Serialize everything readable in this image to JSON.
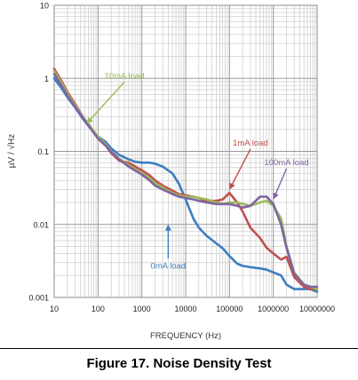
{
  "chart_data": {
    "type": "line",
    "xscale": "log",
    "yscale": "log",
    "xlim": [
      10,
      10000000
    ],
    "ylim": [
      0.001,
      10
    ],
    "grid": true,
    "xlabel": "FREQUENCY (Hz)",
    "ylabel": "µV / √Hz",
    "xticks": [
      {
        "value": 10,
        "label": "10"
      },
      {
        "value": 100,
        "label": "100"
      },
      {
        "value": 1000,
        "label": "1000"
      },
      {
        "value": 10000,
        "label": "10000"
      },
      {
        "value": 100000,
        "label": "100000"
      },
      {
        "value": 1000000,
        "label": "1000000"
      },
      {
        "value": 10000000,
        "label": "10000000"
      }
    ],
    "yticks": [
      {
        "value": 0.001,
        "label": "0.001"
      },
      {
        "value": 0.01,
        "label": "0.01"
      },
      {
        "value": 0.1,
        "label": "0.1"
      },
      {
        "value": 1,
        "label": "1"
      },
      {
        "value": 10,
        "label": "10"
      }
    ],
    "series": [
      {
        "name": "0mA load",
        "color": "#3d7dbf",
        "points": [
          [
            10,
            1.0
          ],
          [
            15,
            0.72
          ],
          [
            20,
            0.55
          ],
          [
            30,
            0.4
          ],
          [
            45,
            0.28
          ],
          [
            70,
            0.2
          ],
          [
            100,
            0.16
          ],
          [
            150,
            0.135
          ],
          [
            200,
            0.11
          ],
          [
            300,
            0.09
          ],
          [
            500,
            0.078
          ],
          [
            700,
            0.072
          ],
          [
            1000,
            0.07
          ],
          [
            1500,
            0.07
          ],
          [
            2000,
            0.068
          ],
          [
            3000,
            0.062
          ],
          [
            5000,
            0.05
          ],
          [
            7000,
            0.036
          ],
          [
            10000,
            0.022
          ],
          [
            15000,
            0.012
          ],
          [
            20000,
            0.009
          ],
          [
            30000,
            0.007
          ],
          [
            50000,
            0.0055
          ],
          [
            70000,
            0.0047
          ],
          [
            100000,
            0.0037
          ],
          [
            150000,
            0.0029
          ],
          [
            200000,
            0.0027
          ],
          [
            300000,
            0.0026
          ],
          [
            500000,
            0.0025
          ],
          [
            700000,
            0.0024
          ],
          [
            1000000,
            0.0022
          ],
          [
            1500000,
            0.002
          ],
          [
            2000000,
            0.0015
          ],
          [
            3000000,
            0.0013
          ],
          [
            5000000,
            0.0013
          ],
          [
            7000000,
            0.0013
          ],
          [
            10000000,
            0.0012
          ]
        ]
      },
      {
        "name": "1mA load",
        "color": "#c0504d",
        "points": [
          [
            10,
            1.35
          ],
          [
            15,
            0.9
          ],
          [
            20,
            0.65
          ],
          [
            30,
            0.45
          ],
          [
            45,
            0.3
          ],
          [
            70,
            0.21
          ],
          [
            100,
            0.15
          ],
          [
            150,
            0.12
          ],
          [
            200,
            0.095
          ],
          [
            300,
            0.075
          ],
          [
            500,
            0.07
          ],
          [
            1000,
            0.055
          ],
          [
            1500,
            0.047
          ],
          [
            2000,
            0.04
          ],
          [
            3000,
            0.034
          ],
          [
            5000,
            0.029
          ],
          [
            7000,
            0.026
          ],
          [
            10000,
            0.025
          ],
          [
            15000,
            0.024
          ],
          [
            20000,
            0.023
          ],
          [
            30000,
            0.021
          ],
          [
            50000,
            0.021
          ],
          [
            70000,
            0.022
          ],
          [
            100000,
            0.027
          ],
          [
            150000,
            0.02
          ],
          [
            200000,
            0.015
          ],
          [
            300000,
            0.009
          ],
          [
            500000,
            0.0065
          ],
          [
            700000,
            0.0048
          ],
          [
            1000000,
            0.004
          ],
          [
            1500000,
            0.0033
          ],
          [
            2000000,
            0.0036
          ],
          [
            3000000,
            0.0019
          ],
          [
            5000000,
            0.0014
          ],
          [
            7000000,
            0.0013
          ],
          [
            10000000,
            0.0013
          ]
        ]
      },
      {
        "name": "10mA load",
        "color": "#9bbb59",
        "points": [
          [
            10,
            1.25
          ],
          [
            15,
            0.85
          ],
          [
            20,
            0.62
          ],
          [
            30,
            0.43
          ],
          [
            45,
            0.3
          ],
          [
            70,
            0.21
          ],
          [
            100,
            0.16
          ],
          [
            150,
            0.125
          ],
          [
            200,
            0.1
          ],
          [
            300,
            0.08
          ],
          [
            500,
            0.065
          ],
          [
            1000,
            0.05
          ],
          [
            1500,
            0.043
          ],
          [
            2000,
            0.037
          ],
          [
            3000,
            0.032
          ],
          [
            5000,
            0.027
          ],
          [
            7000,
            0.025
          ],
          [
            10000,
            0.024
          ],
          [
            15000,
            0.024
          ],
          [
            20000,
            0.023
          ],
          [
            30000,
            0.022
          ],
          [
            50000,
            0.02
          ],
          [
            70000,
            0.019
          ],
          [
            100000,
            0.02
          ],
          [
            150000,
            0.02
          ],
          [
            200000,
            0.019
          ],
          [
            300000,
            0.018
          ],
          [
            500000,
            0.02
          ],
          [
            700000,
            0.021
          ],
          [
            1000000,
            0.018
          ],
          [
            1500000,
            0.012
          ],
          [
            2000000,
            0.005
          ],
          [
            3000000,
            0.0022
          ],
          [
            5000000,
            0.0015
          ],
          [
            7000000,
            0.0014
          ],
          [
            10000000,
            0.0013
          ]
        ]
      },
      {
        "name": "100mA load",
        "color": "#8064a2",
        "points": [
          [
            10,
            1.15
          ],
          [
            15,
            0.78
          ],
          [
            20,
            0.58
          ],
          [
            30,
            0.41
          ],
          [
            45,
            0.29
          ],
          [
            70,
            0.2
          ],
          [
            100,
            0.15
          ],
          [
            150,
            0.12
          ],
          [
            200,
            0.098
          ],
          [
            300,
            0.078
          ],
          [
            500,
            0.062
          ],
          [
            1000,
            0.048
          ],
          [
            1500,
            0.04
          ],
          [
            2000,
            0.034
          ],
          [
            3000,
            0.03
          ],
          [
            5000,
            0.026
          ],
          [
            7000,
            0.024
          ],
          [
            10000,
            0.023
          ],
          [
            15000,
            0.022
          ],
          [
            20000,
            0.021
          ],
          [
            30000,
            0.02
          ],
          [
            50000,
            0.019
          ],
          [
            70000,
            0.019
          ],
          [
            100000,
            0.019
          ],
          [
            150000,
            0.018
          ],
          [
            200000,
            0.017
          ],
          [
            300000,
            0.018
          ],
          [
            500000,
            0.024
          ],
          [
            700000,
            0.024
          ],
          [
            1000000,
            0.019
          ],
          [
            1500000,
            0.01
          ],
          [
            2000000,
            0.0048
          ],
          [
            3000000,
            0.0021
          ],
          [
            5000000,
            0.0015
          ],
          [
            7000000,
            0.0014
          ],
          [
            10000000,
            0.0014
          ]
        ]
      }
    ],
    "annotations": [
      {
        "text": "10mA load",
        "color": "#9bbb59",
        "text_pos": [
          400,
          1.0
        ],
        "arrow_to": [
          55,
          0.24
        ]
      },
      {
        "text": "1mA load",
        "color": "#c0504d",
        "text_pos": [
          300000,
          0.12
        ],
        "arrow_to": [
          100000,
          0.03
        ]
      },
      {
        "text": "100mA load",
        "color": "#8064a2",
        "text_pos": [
          2000000,
          0.065
        ],
        "arrow_to": [
          1000000,
          0.022
        ]
      },
      {
        "text": "0mA load",
        "color": "#3d7dbf",
        "text_pos": [
          4000,
          0.0025
        ],
        "arrow_to": [
          4000,
          0.01
        ]
      }
    ]
  },
  "caption": "Figure 17. Noise Density Test"
}
